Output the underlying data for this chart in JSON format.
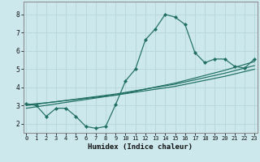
{
  "xlabel": "Humidex (Indice chaleur)",
  "bg_color": "#cce8ed",
  "line_color": "#1e6e60",
  "grid_color": "#b8d8dc",
  "x_data": [
    0,
    1,
    2,
    3,
    4,
    5,
    6,
    7,
    8,
    9,
    10,
    11,
    12,
    13,
    14,
    15,
    16,
    17,
    18,
    19,
    20,
    21,
    22,
    23
  ],
  "y_main": [
    3.1,
    3.0,
    2.4,
    2.85,
    2.85,
    2.4,
    1.85,
    1.75,
    1.85,
    3.05,
    4.35,
    5.0,
    6.6,
    7.2,
    8.0,
    7.85,
    7.45,
    5.9,
    5.35,
    5.55,
    5.55,
    5.15,
    5.05,
    5.55
  ],
  "y_line1": [
    3.05,
    3.1,
    3.15,
    3.21,
    3.27,
    3.33,
    3.39,
    3.45,
    3.51,
    3.57,
    3.65,
    3.73,
    3.81,
    3.89,
    3.97,
    4.05,
    4.16,
    4.27,
    4.38,
    4.49,
    4.6,
    4.73,
    4.86,
    4.99
  ],
  "y_line2": [
    3.0,
    3.07,
    3.14,
    3.21,
    3.28,
    3.35,
    3.42,
    3.49,
    3.56,
    3.63,
    3.72,
    3.81,
    3.9,
    3.99,
    4.08,
    4.17,
    4.29,
    4.41,
    4.53,
    4.65,
    4.77,
    4.91,
    5.05,
    5.19
  ],
  "y_line3": [
    2.85,
    2.93,
    3.01,
    3.09,
    3.17,
    3.25,
    3.33,
    3.41,
    3.49,
    3.57,
    3.68,
    3.79,
    3.9,
    4.01,
    4.12,
    4.23,
    4.37,
    4.51,
    4.65,
    4.79,
    4.93,
    5.09,
    5.25,
    5.41
  ],
  "xlim": [
    -0.3,
    23.3
  ],
  "ylim": [
    1.5,
    8.7
  ],
  "yticks": [
    2,
    3,
    4,
    5,
    6,
    7,
    8
  ],
  "xticks": [
    0,
    1,
    2,
    3,
    4,
    5,
    6,
    7,
    8,
    9,
    10,
    11,
    12,
    13,
    14,
    15,
    16,
    17,
    18,
    19,
    20,
    21,
    22,
    23
  ]
}
